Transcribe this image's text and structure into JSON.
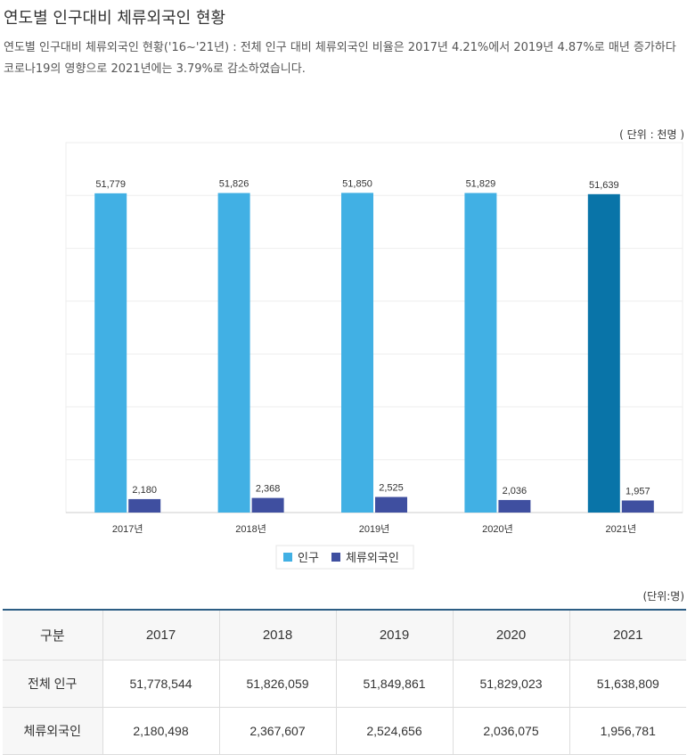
{
  "header": {
    "title": "연도별 인구대비 체류외국인 현황",
    "description": "연도별 인구대비 체류외국인 현황('16~'21년) : 전체 인구 대비 체류외국인 비율은 2017년 4.21%에서 2019년 4.87%로 매년 증가하다 코로나19의 영향으로 2021년에는 3.79%로 감소하였습니다."
  },
  "chart_unit": "( 단위 : 천명 )",
  "chart_data": {
    "type": "bar",
    "categories": [
      "2017년",
      "2018년",
      "2019년",
      "2020년",
      "2021년"
    ],
    "series": [
      {
        "name": "인구",
        "values": [
          51779,
          51826,
          51850,
          51829,
          51639
        ],
        "color": "#41b0e4",
        "highlight_color": "#0974a8"
      },
      {
        "name": "체류외국인",
        "values": [
          2180,
          2368,
          2525,
          2036,
          1957
        ],
        "color": "#3f4fa0"
      }
    ],
    "highlight_index": 4,
    "data_labels": [
      [
        "51,779",
        "51,826",
        "51,850",
        "51,829",
        "51,639"
      ],
      [
        "2,180",
        "2,368",
        "2,525",
        "2,036",
        "1,957"
      ]
    ],
    "ylim": [
      0,
      60000
    ],
    "grid": true,
    "legend_position": "bottom-center"
  },
  "table": {
    "unit": "(단위:명)",
    "headers": [
      "구분",
      "2017",
      "2018",
      "2019",
      "2020",
      "2021"
    ],
    "rows": [
      {
        "label": "전체 인구",
        "values": [
          "51,778,544",
          "51,826,059",
          "51,849,861",
          "51,829,023",
          "51,638,809"
        ]
      },
      {
        "label": "체류외국인",
        "values": [
          "2,180,498",
          "2,367,607",
          "2,524,656",
          "2,036,075",
          "1,956,781"
        ]
      }
    ]
  }
}
